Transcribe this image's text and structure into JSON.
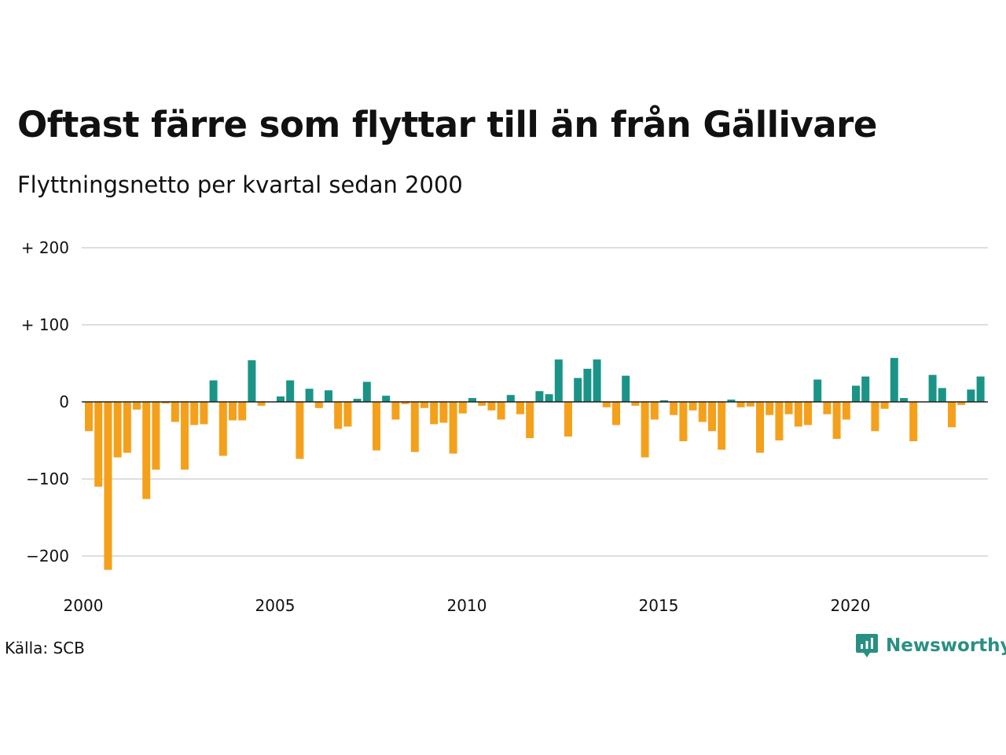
{
  "title": "Oftast färre som flyttar till än från Gällivare",
  "subtitle": "Flyttningsnetto per kvartal sedan 2000",
  "source": "Källa: SCB",
  "brand": {
    "name": "Newsworthy",
    "icon": "newsworthy-logo-icon"
  },
  "colors": {
    "positive": "#1a9486",
    "negative": "#f5a01a",
    "grid": "#dedede",
    "axis": "#222222"
  },
  "chart_data": {
    "type": "bar",
    "title": "Oftast färre som flyttar till än från Gällivare",
    "subtitle": "Flyttningsnetto per kvartal sedan 2000",
    "xlabel": "",
    "ylabel": "",
    "ylim": [
      -220,
      200
    ],
    "xlim": [
      2000,
      2023.75
    ],
    "grid": true,
    "y_ticks": [
      {
        "value": 200,
        "label": "+ 200"
      },
      {
        "value": 100,
        "label": "+ 100"
      },
      {
        "value": 0,
        "label": "0"
      },
      {
        "value": -100,
        "label": "−100"
      },
      {
        "value": -200,
        "label": "−200"
      }
    ],
    "x_ticks": [
      {
        "value": 2000,
        "label": "2000"
      },
      {
        "value": 2005,
        "label": "2005"
      },
      {
        "value": 2010,
        "label": "2010"
      },
      {
        "value": 2015,
        "label": "2015"
      },
      {
        "value": 2020,
        "label": "2020"
      }
    ],
    "x_start": "2000 Q1",
    "frequency": "quarterly",
    "values": [
      -38,
      -110,
      -218,
      -72,
      -66,
      -10,
      -126,
      -88,
      -2,
      -26,
      -88,
      -30,
      -29,
      28,
      -70,
      -24,
      -24,
      54,
      -5,
      0,
      7,
      28,
      -74,
      17,
      -8,
      15,
      -35,
      -32,
      4,
      26,
      -63,
      8,
      -23,
      -3,
      -65,
      -8,
      -29,
      -27,
      -67,
      -15,
      5,
      -5,
      -11,
      -23,
      9,
      -16,
      -47,
      14,
      10,
      55,
      -45,
      31,
      43,
      55,
      -7,
      -30,
      34,
      -5,
      -72,
      -23,
      2,
      -17,
      -51,
      -11,
      -26,
      -38,
      -62,
      3,
      -7,
      -6,
      -66,
      -17,
      -50,
      -16,
      -32,
      -30,
      29,
      -16,
      -48,
      -23,
      21,
      33,
      -38,
      -9,
      57,
      5,
      -51,
      0,
      35,
      18,
      -33,
      -4,
      16,
      33
    ]
  }
}
